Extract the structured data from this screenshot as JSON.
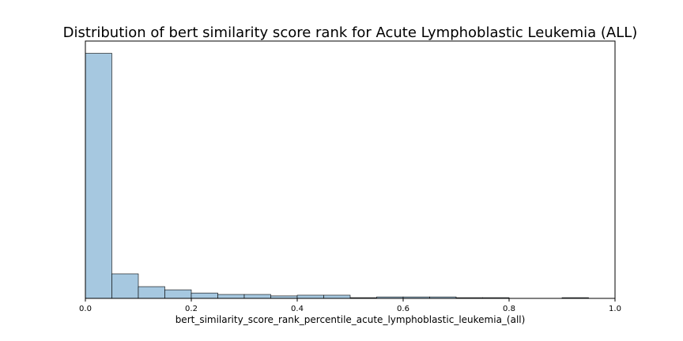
{
  "chart_data": {
    "type": "bar",
    "title": "Distribution of bert similarity score rank for Acute Lymphoblastic Leukemia (ALL)",
    "xlabel": "bert_similarity_score_rank_percentile_acute_lymphoblastic_leukemia_(all)",
    "ylabel": "",
    "xlim": [
      0,
      1.0
    ],
    "ylim": [
      0,
      1.05
    ],
    "x_ticks": [
      "0.0",
      "0.2",
      "0.4",
      "0.6",
      "0.8",
      "1.0"
    ],
    "y_ticks_shown": false,
    "grid": false,
    "bar_color": "#a6c8e0",
    "edge_color": "#000000",
    "bins": [
      {
        "start": 0.0,
        "end": 0.05,
        "value": 1.0
      },
      {
        "start": 0.05,
        "end": 0.1,
        "value": 0.1
      },
      {
        "start": 0.1,
        "end": 0.15,
        "value": 0.048
      },
      {
        "start": 0.15,
        "end": 0.2,
        "value": 0.035
      },
      {
        "start": 0.2,
        "end": 0.25,
        "value": 0.022
      },
      {
        "start": 0.25,
        "end": 0.3,
        "value": 0.016
      },
      {
        "start": 0.3,
        "end": 0.35,
        "value": 0.016
      },
      {
        "start": 0.35,
        "end": 0.4,
        "value": 0.01
      },
      {
        "start": 0.4,
        "end": 0.45,
        "value": 0.013
      },
      {
        "start": 0.45,
        "end": 0.5,
        "value": 0.013
      },
      {
        "start": 0.5,
        "end": 0.55,
        "value": 0.003
      },
      {
        "start": 0.55,
        "end": 0.6,
        "value": 0.006
      },
      {
        "start": 0.6,
        "end": 0.65,
        "value": 0.006
      },
      {
        "start": 0.65,
        "end": 0.7,
        "value": 0.006
      },
      {
        "start": 0.7,
        "end": 0.75,
        "value": 0.003
      },
      {
        "start": 0.75,
        "end": 0.8,
        "value": 0.003
      },
      {
        "start": 0.8,
        "end": 0.85,
        "value": 0.0
      },
      {
        "start": 0.85,
        "end": 0.9,
        "value": 0.0
      },
      {
        "start": 0.9,
        "end": 0.95,
        "value": 0.003
      }
    ]
  }
}
